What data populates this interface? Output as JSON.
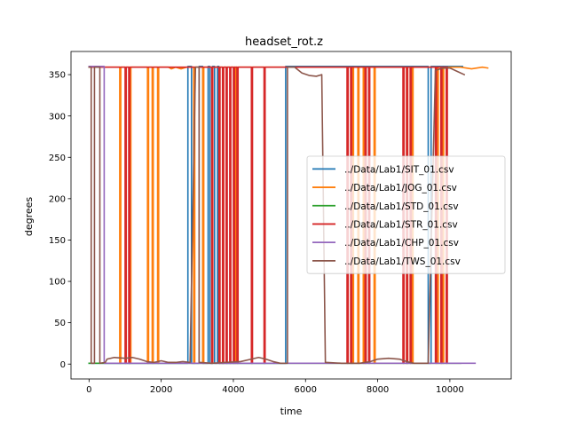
{
  "chart_data": {
    "type": "line",
    "title": "headset_rot.z",
    "xlabel": "time",
    "ylabel": "degrees",
    "xlim": [
      -500,
      11700
    ],
    "ylim": [
      -18,
      378
    ],
    "xticks": [
      0,
      2000,
      4000,
      6000,
      8000,
      10000
    ],
    "yticks": [
      0,
      50,
      100,
      150,
      200,
      250,
      300,
      350
    ],
    "grid": false,
    "legend_position": "center-right",
    "series": [
      {
        "name": "../Data/Lab1/SIT_01.csv",
        "color": "#1f77b4",
        "points": [
          [
            0,
            1
          ],
          [
            2740,
            1
          ],
          [
            2740,
            360
          ],
          [
            2840,
            360
          ],
          [
            2840,
            1
          ],
          [
            3050,
            1
          ],
          [
            3050,
            360
          ],
          [
            3150,
            360
          ],
          [
            3150,
            1
          ],
          [
            3300,
            1
          ],
          [
            3300,
            360
          ],
          [
            3350,
            360
          ],
          [
            3350,
            1
          ],
          [
            3420,
            1
          ],
          [
            3420,
            360
          ],
          [
            3480,
            360
          ],
          [
            3480,
            1
          ],
          [
            3560,
            1
          ],
          [
            3560,
            360
          ],
          [
            3600,
            360
          ],
          [
            3600,
            1
          ],
          [
            5450,
            1
          ],
          [
            5450,
            360
          ],
          [
            9400,
            360
          ],
          [
            9400,
            1
          ],
          [
            9480,
            1
          ],
          [
            9480,
            360
          ],
          [
            10350,
            360
          ]
        ]
      },
      {
        "name": "../Data/Lab1/JOG_01.csv",
        "color": "#ff7f0e",
        "points": [
          [
            0,
            359
          ],
          [
            850,
            359
          ],
          [
            850,
            1
          ],
          [
            880,
            1
          ],
          [
            880,
            359
          ],
          [
            1130,
            359
          ],
          [
            1130,
            1
          ],
          [
            1160,
            1
          ],
          [
            1160,
            359
          ],
          [
            1620,
            359
          ],
          [
            1620,
            1
          ],
          [
            1650,
            1
          ],
          [
            1650,
            359
          ],
          [
            1750,
            359
          ],
          [
            1750,
            1
          ],
          [
            1780,
            1
          ],
          [
            1780,
            359
          ],
          [
            1900,
            359
          ],
          [
            1900,
            1
          ],
          [
            1930,
            1
          ],
          [
            1930,
            359
          ],
          [
            2200,
            359
          ],
          [
            2280,
            357
          ],
          [
            2400,
            359
          ],
          [
            2550,
            357
          ],
          [
            2700,
            359
          ],
          [
            2900,
            359
          ],
          [
            2900,
            1
          ],
          [
            2930,
            1
          ],
          [
            2930,
            359
          ],
          [
            3150,
            359
          ],
          [
            3150,
            1
          ],
          [
            3180,
            1
          ],
          [
            3180,
            359
          ],
          [
            3700,
            359
          ],
          [
            3700,
            1
          ],
          [
            3730,
            1
          ],
          [
            3730,
            359
          ],
          [
            4050,
            359
          ],
          [
            4050,
            1
          ],
          [
            4080,
            1
          ],
          [
            4080,
            359
          ],
          [
            7300,
            359
          ],
          [
            7300,
            1
          ],
          [
            7330,
            1
          ],
          [
            7330,
            359
          ],
          [
            7450,
            359
          ],
          [
            7450,
            1
          ],
          [
            7480,
            1
          ],
          [
            7480,
            359
          ],
          [
            7600,
            359
          ],
          [
            7600,
            1
          ],
          [
            7630,
            1
          ],
          [
            7630,
            359
          ],
          [
            7900,
            359
          ],
          [
            7900,
            1
          ],
          [
            7930,
            1
          ],
          [
            7930,
            359
          ],
          [
            8800,
            359
          ],
          [
            8800,
            1
          ],
          [
            8830,
            1
          ],
          [
            8830,
            359
          ],
          [
            8950,
            359
          ],
          [
            8950,
            1
          ],
          [
            8980,
            1
          ],
          [
            8980,
            359
          ],
          [
            9650,
            359
          ],
          [
            9650,
            1
          ],
          [
            9680,
            1
          ],
          [
            9680,
            359
          ],
          [
            9800,
            359
          ],
          [
            9800,
            1
          ],
          [
            9830,
            1
          ],
          [
            9830,
            359
          ],
          [
            10300,
            359
          ],
          [
            10600,
            357
          ],
          [
            10900,
            359
          ],
          [
            11050,
            358
          ]
        ]
      },
      {
        "name": "../Data/Lab1/STD_01.csv",
        "color": "#2ca02c",
        "points": [
          [
            0,
            1
          ],
          [
            10300,
            1
          ]
        ]
      },
      {
        "name": "../Data/Lab1/STR_01.csv",
        "color": "#d62728",
        "points": [
          [
            0,
            359
          ],
          [
            1000,
            359
          ],
          [
            1000,
            1
          ],
          [
            1030,
            1
          ],
          [
            1030,
            359
          ],
          [
            1100,
            359
          ],
          [
            1100,
            1
          ],
          [
            1130,
            1
          ],
          [
            1130,
            359
          ],
          [
            3400,
            359
          ],
          [
            3400,
            1
          ],
          [
            3430,
            1
          ],
          [
            3430,
            359
          ],
          [
            3600,
            359
          ],
          [
            3600,
            1
          ],
          [
            3630,
            1
          ],
          [
            3630,
            359
          ],
          [
            3700,
            359
          ],
          [
            3700,
            1
          ],
          [
            3730,
            1
          ],
          [
            3730,
            359
          ],
          [
            3800,
            359
          ],
          [
            3800,
            1
          ],
          [
            3830,
            1
          ],
          [
            3830,
            359
          ],
          [
            3900,
            359
          ],
          [
            3900,
            1
          ],
          [
            3930,
            1
          ],
          [
            3930,
            359
          ],
          [
            4000,
            359
          ],
          [
            4000,
            1
          ],
          [
            4030,
            1
          ],
          [
            4030,
            359
          ],
          [
            4100,
            359
          ],
          [
            4100,
            1
          ],
          [
            4130,
            1
          ],
          [
            4130,
            359
          ],
          [
            4500,
            359
          ],
          [
            4500,
            1
          ],
          [
            4530,
            1
          ],
          [
            4530,
            359
          ],
          [
            4850,
            359
          ],
          [
            4850,
            1
          ],
          [
            4880,
            1
          ],
          [
            4880,
            359
          ],
          [
            7150,
            359
          ],
          [
            7150,
            1
          ],
          [
            7180,
            1
          ],
          [
            7180,
            359
          ],
          [
            7250,
            359
          ],
          [
            7250,
            1
          ],
          [
            7280,
            1
          ],
          [
            7280,
            359
          ],
          [
            7650,
            359
          ],
          [
            7650,
            1
          ],
          [
            7680,
            1
          ],
          [
            7680,
            359
          ],
          [
            7750,
            359
          ],
          [
            7750,
            1
          ],
          [
            7780,
            1
          ],
          [
            7780,
            359
          ],
          [
            8700,
            359
          ],
          [
            8700,
            1
          ],
          [
            8730,
            1
          ],
          [
            8730,
            359
          ],
          [
            8800,
            359
          ],
          [
            8800,
            1
          ],
          [
            8830,
            1
          ],
          [
            8830,
            359
          ],
          [
            8900,
            359
          ],
          [
            8900,
            1
          ],
          [
            8930,
            1
          ],
          [
            8930,
            359
          ],
          [
            9600,
            359
          ],
          [
            9600,
            1
          ],
          [
            9630,
            1
          ],
          [
            9630,
            359
          ],
          [
            9750,
            359
          ],
          [
            9750,
            1
          ],
          [
            9780,
            1
          ],
          [
            9780,
            359
          ],
          [
            9900,
            359
          ],
          [
            9900,
            1
          ],
          [
            9930,
            1
          ],
          [
            9930,
            359
          ]
        ]
      },
      {
        "name": "../Data/Lab1/CHP_01.csv",
        "color": "#9467bd",
        "points": [
          [
            0,
            360
          ],
          [
            420,
            360
          ],
          [
            420,
            1
          ],
          [
            10700,
            1
          ]
        ]
      },
      {
        "name": "../Data/Lab1/TWS_01.csv",
        "color": "#8c564b",
        "points": [
          [
            0,
            359
          ],
          [
            60,
            359
          ],
          [
            60,
            1
          ],
          [
            150,
            1
          ],
          [
            150,
            359
          ],
          [
            300,
            359
          ],
          [
            300,
            1
          ],
          [
            450,
            2
          ],
          [
            500,
            6
          ],
          [
            700,
            8
          ],
          [
            1000,
            7
          ],
          [
            1200,
            8
          ],
          [
            1400,
            6
          ],
          [
            1600,
            3
          ],
          [
            1800,
            2
          ],
          [
            2000,
            4
          ],
          [
            2200,
            2
          ],
          [
            2400,
            2
          ],
          [
            2600,
            3
          ],
          [
            2800,
            2
          ],
          [
            2950,
            359
          ],
          [
            3050,
            359
          ],
          [
            3050,
            2
          ],
          [
            3400,
            1
          ],
          [
            3800,
            2
          ],
          [
            4200,
            3
          ],
          [
            4500,
            6
          ],
          [
            4700,
            8
          ],
          [
            4900,
            6
          ],
          [
            5100,
            3
          ],
          [
            5300,
            1
          ],
          [
            5500,
            1
          ],
          [
            5500,
            359
          ],
          [
            5700,
            359
          ],
          [
            5900,
            352
          ],
          [
            6100,
            349
          ],
          [
            6300,
            348
          ],
          [
            6450,
            350
          ],
          [
            6550,
            2
          ],
          [
            7000,
            1
          ],
          [
            7500,
            1
          ],
          [
            7800,
            3
          ],
          [
            8000,
            6
          ],
          [
            8300,
            7
          ],
          [
            8600,
            6
          ],
          [
            8800,
            3
          ],
          [
            9000,
            1
          ],
          [
            9400,
            1
          ],
          [
            9600,
            355
          ],
          [
            9800,
            358
          ],
          [
            10000,
            358
          ],
          [
            10200,
            354
          ],
          [
            10400,
            350
          ]
        ]
      }
    ]
  }
}
